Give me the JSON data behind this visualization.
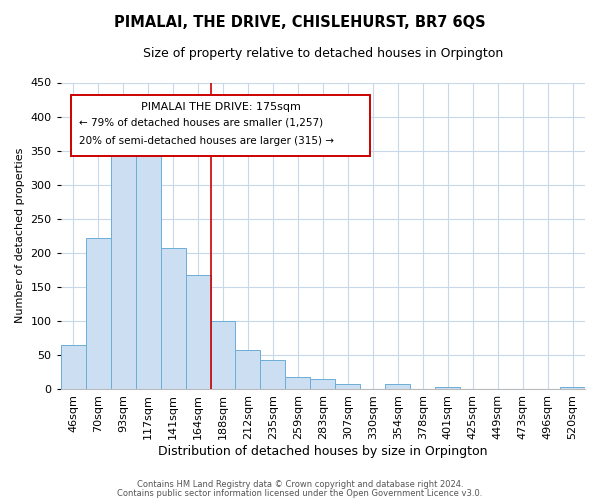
{
  "title": "PIMALAI, THE DRIVE, CHISLEHURST, BR7 6QS",
  "subtitle": "Size of property relative to detached houses in Orpington",
  "xlabel": "Distribution of detached houses by size in Orpington",
  "ylabel": "Number of detached properties",
  "bin_labels": [
    "46sqm",
    "70sqm",
    "93sqm",
    "117sqm",
    "141sqm",
    "164sqm",
    "188sqm",
    "212sqm",
    "235sqm",
    "259sqm",
    "283sqm",
    "307sqm",
    "330sqm",
    "354sqm",
    "378sqm",
    "401sqm",
    "425sqm",
    "449sqm",
    "473sqm",
    "496sqm",
    "520sqm"
  ],
  "bar_values": [
    65,
    222,
    345,
    343,
    207,
    168,
    100,
    57,
    43,
    17,
    15,
    7,
    0,
    7,
    0,
    3,
    0,
    0,
    0,
    0,
    3
  ],
  "bar_color": "#ccdff2",
  "bar_edge_color": "#6baed6",
  "vline_x": 5.5,
  "vline_color": "#cc0000",
  "annotation_title": "PIMALAI THE DRIVE: 175sqm",
  "annotation_line1": "← 79% of detached houses are smaller (1,257)",
  "annotation_line2": "20% of semi-detached houses are larger (315) →",
  "annotation_box_edge": "#cc0000",
  "annotation_box_facecolor": "#ffffff",
  "ylim": [
    0,
    450
  ],
  "yticks": [
    0,
    50,
    100,
    150,
    200,
    250,
    300,
    350,
    400,
    450
  ],
  "footer_line1": "Contains HM Land Registry data © Crown copyright and database right 2024.",
  "footer_line2": "Contains public sector information licensed under the Open Government Licence v3.0.",
  "background_color": "#ffffff",
  "grid_color": "#c8d8e8",
  "title_fontsize": 10.5,
  "subtitle_fontsize": 9,
  "ylabel_fontsize": 8,
  "xlabel_fontsize": 9,
  "tick_fontsize": 8,
  "footer_fontsize": 6,
  "annot_title_fontsize": 8,
  "annot_text_fontsize": 7.5
}
